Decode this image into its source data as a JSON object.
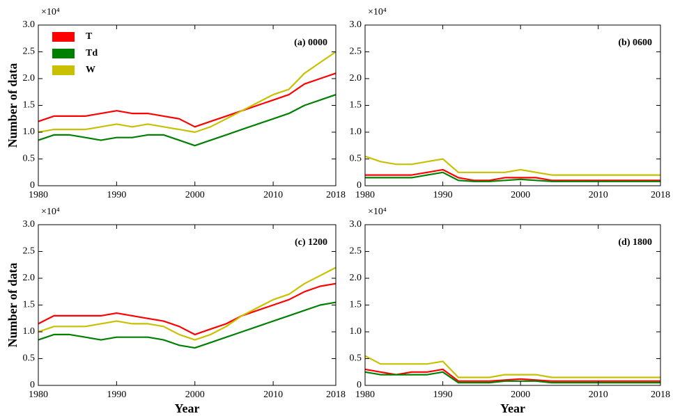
{
  "chart_data": [
    {
      "type": "line",
      "panel_label": "(a) 0000",
      "y_multiplier": "×10⁴",
      "y_label": "Number of data",
      "legend": "upper left",
      "xlim": [
        1980,
        2018
      ],
      "xticks": [
        1980,
        1990,
        2000,
        2010,
        2018
      ],
      "ylim": [
        0,
        3
      ],
      "yticks": [
        0,
        0.5,
        {
          "value": 1,
          "label": "1.0"
        },
        1.5,
        {
          "value": 2,
          "label": "2.0"
        },
        2.5,
        {
          "value": 3,
          "label": "3.0"
        }
      ],
      "x": [
        1980,
        1982,
        1984,
        1986,
        1988,
        1990,
        1992,
        1994,
        1996,
        1998,
        2000,
        2002,
        2004,
        2006,
        2008,
        2010,
        2012,
        2014,
        2016,
        2018
      ],
      "series": [
        {
          "name": "T",
          "color": "#ff0000",
          "values": [
            1.2,
            1.3,
            1.3,
            1.3,
            1.35,
            1.4,
            1.35,
            1.35,
            1.3,
            1.25,
            1.1,
            1.2,
            1.3,
            1.4,
            1.5,
            1.6,
            1.7,
            1.9,
            2.0,
            2.1
          ]
        },
        {
          "name": "Td",
          "color": "#008000",
          "values": [
            0.85,
            0.95,
            0.95,
            0.9,
            0.85,
            0.9,
            0.9,
            0.95,
            0.95,
            0.85,
            0.75,
            0.85,
            0.95,
            1.05,
            1.15,
            1.25,
            1.35,
            1.5,
            1.6,
            1.7
          ]
        },
        {
          "name": "W",
          "color": "#c8c000",
          "values": [
            1.0,
            1.05,
            1.05,
            1.05,
            1.1,
            1.15,
            1.1,
            1.15,
            1.1,
            1.05,
            1.0,
            1.1,
            1.25,
            1.4,
            1.55,
            1.7,
            1.8,
            2.1,
            2.3,
            2.5
          ]
        }
      ]
    },
    {
      "type": "line",
      "panel_label": "(b) 0600",
      "y_multiplier": "×10⁴",
      "xlim": [
        1980,
        2018
      ],
      "xticks": [
        1980,
        1990,
        2000,
        2010,
        2018
      ],
      "ylim": [
        0,
        3
      ],
      "yticks": [
        0,
        0.5,
        {
          "value": 1,
          "label": "1.0"
        },
        1.5,
        {
          "value": 2,
          "label": "2.0"
        },
        2.5,
        {
          "value": 3,
          "label": "3.0"
        }
      ],
      "x": [
        1980,
        1982,
        1984,
        1986,
        1988,
        1990,
        1992,
        1994,
        1996,
        1998,
        2000,
        2002,
        2004,
        2006,
        2008,
        2010,
        2012,
        2014,
        2016,
        2018
      ],
      "series": [
        {
          "color": "#ff0000",
          "values": [
            0.2,
            0.2,
            0.2,
            0.2,
            0.25,
            0.3,
            0.15,
            0.1,
            0.1,
            0.15,
            0.15,
            0.15,
            0.1,
            0.1,
            0.1,
            0.1,
            0.1,
            0.1,
            0.1,
            0.1
          ]
        },
        {
          "color": "#008000",
          "values": [
            0.15,
            0.15,
            0.15,
            0.15,
            0.2,
            0.25,
            0.1,
            0.08,
            0.08,
            0.1,
            0.12,
            0.1,
            0.08,
            0.08,
            0.08,
            0.08,
            0.08,
            0.08,
            0.08,
            0.08
          ]
        },
        {
          "color": "#c8c000",
          "values": [
            0.55,
            0.45,
            0.4,
            0.4,
            0.45,
            0.5,
            0.25,
            0.25,
            0.25,
            0.25,
            0.3,
            0.25,
            0.2,
            0.2,
            0.2,
            0.2,
            0.2,
            0.2,
            0.2,
            0.2
          ]
        }
      ]
    },
    {
      "type": "line",
      "panel_label": "(c) 1200",
      "y_multiplier": "×10⁴",
      "y_label": "Number of data",
      "x_label": "Year",
      "xlim": [
        1980,
        2018
      ],
      "xticks": [
        1980,
        1990,
        2000,
        2010,
        2018
      ],
      "ylim": [
        0,
        3
      ],
      "yticks": [
        0,
        0.5,
        {
          "value": 1,
          "label": "1.0"
        },
        1.5,
        {
          "value": 2,
          "label": "2.0"
        },
        2.5,
        {
          "value": 3,
          "label": "3.0"
        }
      ],
      "x": [
        1980,
        1982,
        1984,
        1986,
        1988,
        1990,
        1992,
        1994,
        1996,
        1998,
        2000,
        2002,
        2004,
        2006,
        2008,
        2010,
        2012,
        2014,
        2016,
        2018
      ],
      "series": [
        {
          "color": "#ff0000",
          "values": [
            1.15,
            1.3,
            1.3,
            1.3,
            1.3,
            1.35,
            1.3,
            1.25,
            1.2,
            1.1,
            0.95,
            1.05,
            1.15,
            1.3,
            1.4,
            1.5,
            1.6,
            1.75,
            1.85,
            1.9
          ]
        },
        {
          "color": "#008000",
          "values": [
            0.85,
            0.95,
            0.95,
            0.9,
            0.85,
            0.9,
            0.9,
            0.9,
            0.85,
            0.75,
            0.7,
            0.8,
            0.9,
            1.0,
            1.1,
            1.2,
            1.3,
            1.4,
            1.5,
            1.55
          ]
        },
        {
          "color": "#c8c000",
          "values": [
            1.0,
            1.1,
            1.1,
            1.1,
            1.15,
            1.2,
            1.15,
            1.15,
            1.1,
            0.95,
            0.85,
            0.95,
            1.1,
            1.3,
            1.45,
            1.6,
            1.7,
            1.9,
            2.05,
            2.2
          ]
        }
      ]
    },
    {
      "type": "line",
      "panel_label": "(d) 1800",
      "y_multiplier": "×10⁴",
      "x_label": "Year",
      "xlim": [
        1980,
        2018
      ],
      "xticks": [
        1980,
        1990,
        2000,
        2010,
        2018
      ],
      "ylim": [
        0,
        3
      ],
      "yticks": [
        0,
        0.5,
        {
          "value": 1,
          "label": "1.0"
        },
        1.5,
        {
          "value": 2,
          "label": "2.0"
        },
        2.5,
        {
          "value": 3,
          "label": "3.0"
        }
      ],
      "x": [
        1980,
        1982,
        1984,
        1986,
        1988,
        1990,
        1992,
        1994,
        1996,
        1998,
        2000,
        2002,
        2004,
        2006,
        2008,
        2010,
        2012,
        2014,
        2016,
        2018
      ],
      "series": [
        {
          "color": "#ff0000",
          "values": [
            0.3,
            0.25,
            0.2,
            0.25,
            0.25,
            0.3,
            0.08,
            0.08,
            0.08,
            0.1,
            0.12,
            0.1,
            0.08,
            0.08,
            0.08,
            0.08,
            0.08,
            0.08,
            0.08,
            0.08
          ]
        },
        {
          "color": "#008000",
          "values": [
            0.25,
            0.2,
            0.2,
            0.2,
            0.2,
            0.25,
            0.05,
            0.05,
            0.05,
            0.08,
            0.08,
            0.08,
            0.05,
            0.05,
            0.05,
            0.05,
            0.05,
            0.05,
            0.05,
            0.05
          ]
        },
        {
          "color": "#c8c000",
          "values": [
            0.55,
            0.4,
            0.4,
            0.4,
            0.4,
            0.45,
            0.15,
            0.15,
            0.15,
            0.2,
            0.2,
            0.2,
            0.15,
            0.15,
            0.15,
            0.15,
            0.15,
            0.15,
            0.15,
            0.15
          ]
        }
      ]
    }
  ]
}
